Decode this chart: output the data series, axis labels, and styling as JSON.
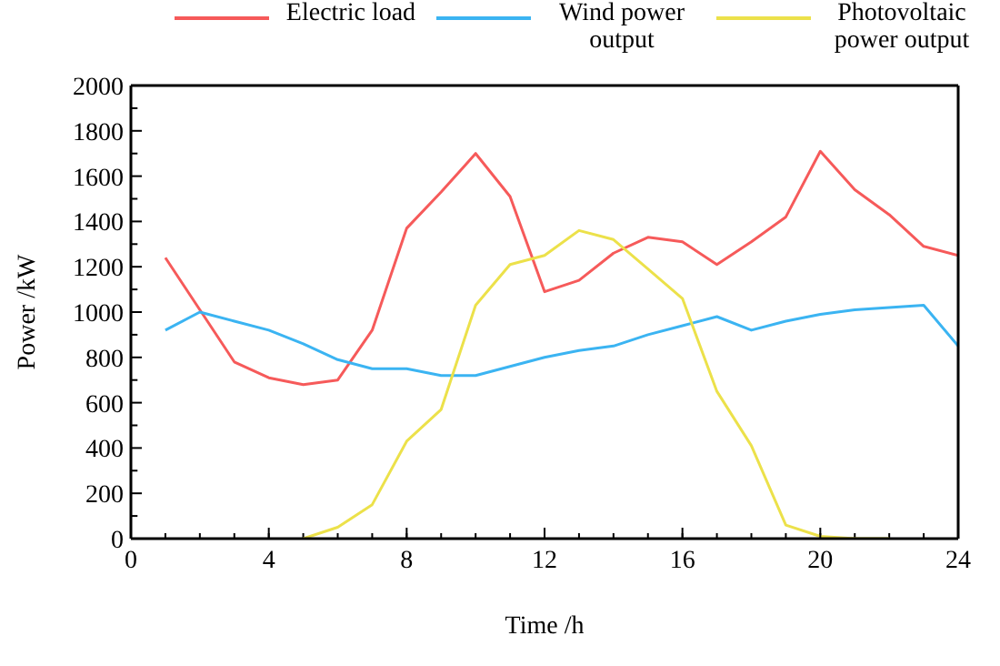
{
  "chart_data": {
    "type": "line",
    "xlabel": "Time /h",
    "ylabel": "Power /kW",
    "x": [
      1,
      2,
      3,
      4,
      5,
      6,
      7,
      8,
      9,
      10,
      11,
      12,
      13,
      14,
      15,
      16,
      17,
      18,
      19,
      20,
      21,
      22,
      23,
      24
    ],
    "xlim": [
      0,
      24
    ],
    "xticks": [
      0,
      4,
      8,
      12,
      16,
      20,
      24
    ],
    "ylim": [
      0,
      2000
    ],
    "yticks": [
      0,
      200,
      400,
      600,
      800,
      1000,
      1200,
      1400,
      1600,
      1800,
      2000
    ],
    "grid": false,
    "legend": "top",
    "marker": "none",
    "line_style": "solid",
    "series": [
      {
        "name": "Electric load",
        "color": "#f65a5a",
        "values": [
          1240,
          1010,
          780,
          710,
          680,
          700,
          920,
          1370,
          1530,
          1700,
          1510,
          1090,
          1140,
          1260,
          1330,
          1310,
          1210,
          1310,
          1420,
          1710,
          1540,
          1430,
          1290,
          1250
        ]
      },
      {
        "name": "Wind power output",
        "color": "#3bb4f2",
        "values": [
          920,
          1000,
          960,
          920,
          860,
          790,
          750,
          750,
          720,
          720,
          760,
          800,
          830,
          850,
          900,
          940,
          980,
          920,
          960,
          990,
          1010,
          1020,
          1030,
          850
        ]
      },
      {
        "name": "Photovoltaic power output",
        "color": "#ece14a",
        "values": [
          null,
          null,
          null,
          null,
          0,
          50,
          150,
          430,
          570,
          1030,
          1210,
          1250,
          1360,
          1320,
          1190,
          1060,
          650,
          410,
          60,
          10,
          0,
          0,
          null,
          null
        ]
      }
    ]
  }
}
